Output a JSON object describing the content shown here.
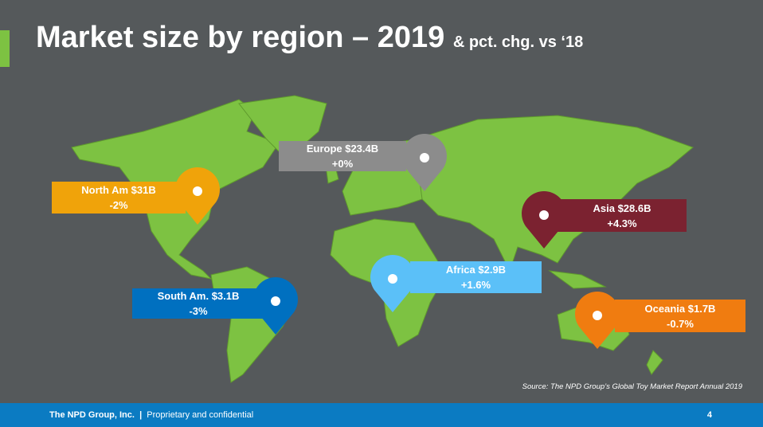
{
  "header": {
    "title": "Market size by region – 2019",
    "subtitle": "& pct. chg. vs ‘18"
  },
  "regions": [
    {
      "name": "Europe $23.4B",
      "change": "+0%"
    },
    {
      "name": "North Am $31B",
      "change": "-2%"
    },
    {
      "name": "Asia $28.6B",
      "change": "+4.3%"
    },
    {
      "name": "Africa $2.9B",
      "change": "+1.6%"
    },
    {
      "name": "South Am.  $3.1B",
      "change": "-3%"
    },
    {
      "name": "Oceania  $1.7B",
      "change": "-0.7%"
    }
  ],
  "source": "Source: The NPD Group’s Global Toy Market Report Annual 2019",
  "footer": {
    "company": "The NPD Group, Inc.",
    "separator": "|",
    "note": "Proprietary and confidential",
    "page": "4"
  }
}
